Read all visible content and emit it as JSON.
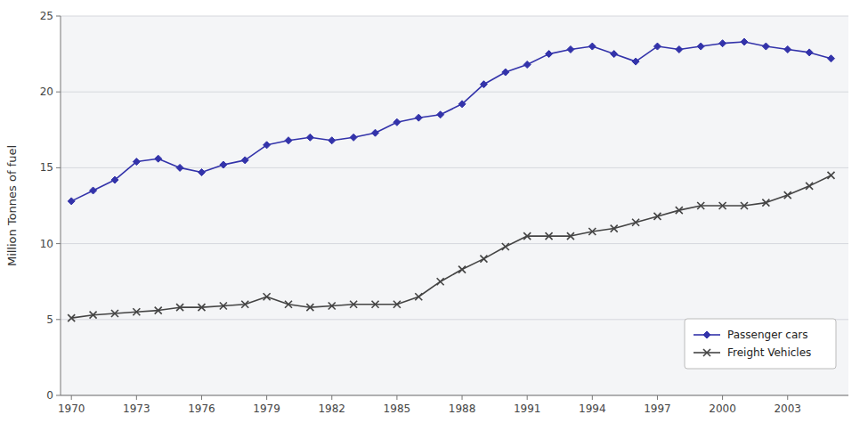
{
  "chart_data": {
    "type": "line",
    "x": [
      1970,
      1971,
      1972,
      1973,
      1974,
      1975,
      1976,
      1977,
      1978,
      1979,
      1980,
      1981,
      1982,
      1983,
      1984,
      1985,
      1986,
      1987,
      1988,
      1989,
      1990,
      1991,
      1992,
      1993,
      1994,
      1995,
      1996,
      1997,
      1998,
      1999,
      2000,
      2001,
      2002,
      2003,
      2004,
      2005
    ],
    "series": [
      {
        "name": "Passenger cars",
        "color": "#3333aa",
        "marker": "diamond",
        "values": [
          12.8,
          13.5,
          14.2,
          15.4,
          15.6,
          15.0,
          14.7,
          15.2,
          15.5,
          16.5,
          16.8,
          17.0,
          16.8,
          17.0,
          17.3,
          18.0,
          18.3,
          18.5,
          19.2,
          20.5,
          21.3,
          21.8,
          22.5,
          22.8,
          23.0,
          22.5,
          22.0,
          23.0,
          22.8,
          23.0,
          23.2,
          23.3,
          23.0,
          22.8,
          22.6,
          22.2
        ]
      },
      {
        "name": "Freight Vehicles",
        "color": "#444444",
        "marker": "x",
        "values": [
          5.1,
          5.3,
          5.4,
          5.5,
          5.6,
          5.8,
          5.8,
          5.9,
          6.0,
          6.5,
          6.0,
          5.8,
          5.9,
          6.0,
          6.0,
          6.0,
          6.5,
          7.5,
          8.3,
          9.0,
          9.8,
          10.5,
          10.5,
          10.5,
          10.8,
          11.0,
          11.4,
          11.8,
          12.2,
          12.5,
          12.5,
          12.5,
          12.7,
          13.2,
          13.8,
          14.5
        ]
      }
    ],
    "y_label": "Million Tonnes of fuel",
    "xlim": [
      1969.5,
      2005.8
    ],
    "xticks": [
      1970,
      1973,
      1976,
      1979,
      1982,
      1985,
      1988,
      1991,
      1994,
      1997,
      2000,
      2003
    ],
    "ylim": [
      0,
      25
    ],
    "yticks": [
      0,
      5,
      10,
      15,
      20,
      25
    ],
    "grid": true,
    "legend": "lower right"
  }
}
